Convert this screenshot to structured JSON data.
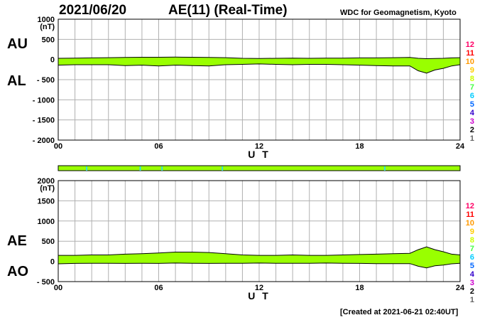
{
  "header": {
    "date": "2021/06/20",
    "title": "AE(11) (Real-Time)",
    "credit": "WDC for Geomagnetism, Kyoto"
  },
  "footer": {
    "created": "[Created at 2021-06-21 02:40UT]"
  },
  "colors": {
    "fill": "#99ff00",
    "grid": "#b0b0b0",
    "station_bar_marks": "#33dddd",
    "station_counts": [
      "#ff0066",
      "#ff0000",
      "#ff9900",
      "#ffcc00",
      "#ccff00",
      "#44ff44",
      "#00ccff",
      "#0066ff",
      "#3300cc",
      "#cc00cc",
      "#000000",
      "#666666",
      "#bbbbbb"
    ]
  },
  "chart_data": [
    {
      "type": "area",
      "panel": "AU/AL",
      "series_labels": [
        "AU",
        "AL"
      ],
      "y_unit": "(nT)",
      "ylim": [
        -2000,
        1000
      ],
      "y_ticks": [
        {
          "value": 1000,
          "label": "1000"
        },
        {
          "value": 500,
          "label": "500"
        },
        {
          "value": 0,
          "label": "0"
        },
        {
          "value": -500,
          "label": "- 500"
        },
        {
          "value": -1000,
          "label": "- 1000"
        },
        {
          "value": -1500,
          "label": "- 1500"
        },
        {
          "value": -2000,
          "label": "- 2000"
        }
      ],
      "xlabel": "U T",
      "xlim": [
        0,
        24
      ],
      "x_ticks": [
        {
          "value": 0,
          "label": "00"
        },
        {
          "value": 6,
          "label": "06"
        },
        {
          "value": 12,
          "label": "12"
        },
        {
          "value": 18,
          "label": "18"
        },
        {
          "value": 24,
          "label": "24"
        }
      ],
      "grid": true,
      "station_counts": [
        "12",
        "11",
        "10",
        "9",
        "8",
        "7",
        "6",
        "5",
        "4",
        "3",
        "2",
        "1"
      ],
      "series": [
        {
          "name": "AU",
          "x": [
            0,
            1,
            2,
            3,
            4,
            5,
            6,
            7,
            8,
            9,
            10,
            11,
            12,
            13,
            14,
            15,
            16,
            17,
            18,
            19,
            20,
            21,
            21.5,
            22,
            22.5,
            23,
            23.5,
            24
          ],
          "values": [
            30,
            35,
            40,
            45,
            50,
            55,
            55,
            60,
            55,
            50,
            45,
            30,
            25,
            30,
            35,
            30,
            35,
            35,
            40,
            40,
            45,
            50,
            30,
            20,
            25,
            30,
            40,
            45
          ]
        },
        {
          "name": "AL",
          "x": [
            0,
            1,
            2,
            3,
            4,
            5,
            6,
            7,
            8,
            9,
            10,
            11,
            12,
            13,
            14,
            15,
            16,
            17,
            18,
            19,
            20,
            21,
            21.5,
            22,
            22.5,
            23,
            23.5,
            24
          ],
          "values": [
            -140,
            -130,
            -130,
            -130,
            -150,
            -140,
            -160,
            -140,
            -150,
            -160,
            -130,
            -120,
            -110,
            -120,
            -130,
            -120,
            -120,
            -130,
            -140,
            -150,
            -160,
            -160,
            -280,
            -340,
            -260,
            -220,
            -160,
            -130
          ]
        }
      ]
    },
    {
      "type": "area",
      "panel": "AE/AO",
      "series_labels": [
        "AE",
        "AO"
      ],
      "y_unit": "(nT)",
      "ylim": [
        -500,
        2000
      ],
      "y_ticks": [
        {
          "value": 2000,
          "label": "2000"
        },
        {
          "value": 1500,
          "label": "1500"
        },
        {
          "value": 1000,
          "label": "1000"
        },
        {
          "value": 500,
          "label": "500"
        },
        {
          "value": 0,
          "label": "0"
        },
        {
          "value": -500,
          "label": "- 500"
        }
      ],
      "xlabel": "U T",
      "xlim": [
        0,
        24
      ],
      "x_ticks": [
        {
          "value": 0,
          "label": "00"
        },
        {
          "value": 6,
          "label": "06"
        },
        {
          "value": 12,
          "label": "12"
        },
        {
          "value": 18,
          "label": "18"
        },
        {
          "value": 24,
          "label": "24"
        }
      ],
      "grid": true,
      "station_counts": [
        "12",
        "11",
        "10",
        "9",
        "8",
        "7",
        "6",
        "5",
        "4",
        "3",
        "2",
        "1"
      ],
      "series": [
        {
          "name": "AE",
          "x": [
            0,
            1,
            2,
            3,
            4,
            5,
            6,
            7,
            8,
            9,
            10,
            11,
            12,
            13,
            14,
            15,
            16,
            17,
            18,
            19,
            20,
            21,
            21.5,
            22,
            22.5,
            23,
            23.5,
            24
          ],
          "values": [
            150,
            150,
            160,
            160,
            180,
            190,
            210,
            230,
            230,
            220,
            190,
            160,
            150,
            150,
            160,
            150,
            150,
            160,
            170,
            180,
            190,
            200,
            290,
            360,
            290,
            240,
            180,
            160
          ]
        },
        {
          "name": "AO",
          "x": [
            0,
            1,
            2,
            3,
            4,
            5,
            6,
            7,
            8,
            9,
            10,
            11,
            12,
            13,
            14,
            15,
            16,
            17,
            18,
            19,
            20,
            21,
            21.5,
            22,
            22.5,
            23,
            23.5,
            24
          ],
          "values": [
            -60,
            -50,
            -45,
            -45,
            -50,
            -45,
            -50,
            -40,
            -45,
            -50,
            -45,
            -45,
            -40,
            -45,
            -45,
            -45,
            -40,
            -45,
            -50,
            -55,
            -55,
            -55,
            -120,
            -160,
            -110,
            -90,
            -60,
            -45
          ]
        }
      ]
    }
  ]
}
